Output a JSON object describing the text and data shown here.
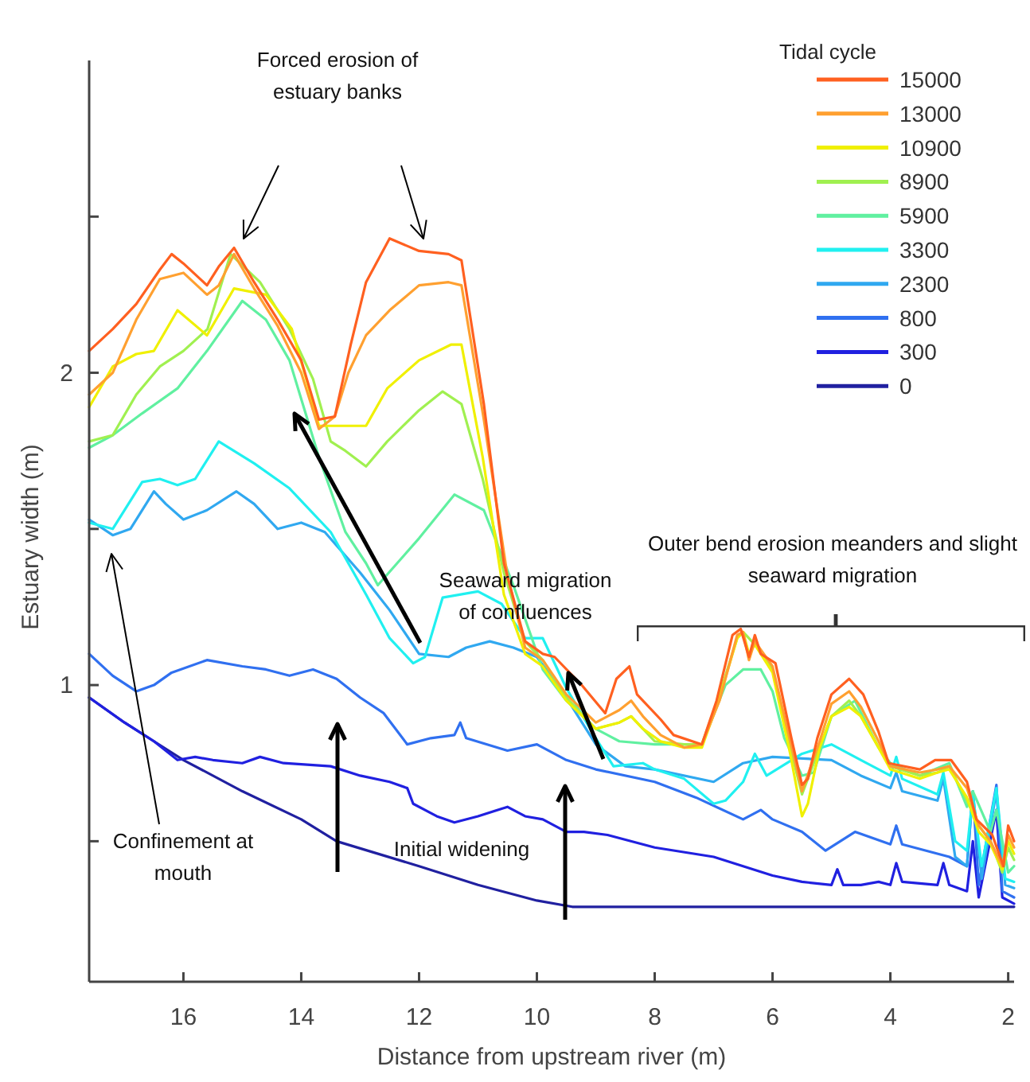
{
  "chart_data": {
    "type": "line",
    "xlabel": "Distance from upstream river (m)",
    "ylabel": "Estuary width (m)",
    "legend_title": "Tidal cycle",
    "legend": "top right",
    "grid": false,
    "marker": "none",
    "line_style": "solid",
    "xlim": [
      17.6,
      1.9
    ],
    "xticks": [
      16,
      14,
      12,
      10,
      8,
      6,
      4,
      2
    ],
    "ylim": [
      0.05,
      3.0
    ],
    "yticks": [
      {
        "value": 0.5,
        "label": null
      },
      1,
      {
        "value": 1.5,
        "label": null
      },
      2,
      {
        "value": 2.5,
        "label": null
      }
    ],
    "annotations": [
      "Forced erosion of estuary banks",
      "Seaward migration of confluences",
      "Outer bend erosion meanders and slight seaward migration",
      "Confinement at mouth",
      "Initial widening"
    ],
    "series": [
      {
        "name": "15000",
        "color": "#ff6020",
        "x": [
          17.6,
          17.2,
          16.8,
          16.4,
          16.2,
          16.0,
          15.6,
          15.4,
          15.14,
          14.8,
          14.4,
          14.0,
          13.7,
          13.43,
          13.16,
          12.9,
          12.5,
          12.0,
          11.5,
          11.28,
          10.9,
          10.56,
          10.2,
          9.9,
          9.7,
          9.24,
          8.84,
          8.65,
          8.43,
          8.3,
          7.9,
          7.68,
          7.2,
          6.95,
          6.68,
          6.54,
          6.4,
          6.3,
          6.2,
          5.95,
          5.68,
          5.5,
          5.4,
          5.24,
          5.0,
          4.7,
          4.46,
          4.2,
          4.03,
          3.5,
          3.24,
          2.97,
          2.7,
          2.54,
          2.27,
          2.08,
          2.0,
          1.9
        ],
        "values": [
          2.07,
          2.14,
          2.22,
          2.33,
          2.38,
          2.35,
          2.28,
          2.34,
          2.4,
          2.29,
          2.17,
          2.04,
          1.85,
          1.86,
          2.09,
          2.29,
          2.43,
          2.39,
          2.38,
          2.36,
          1.9,
          1.39,
          1.14,
          1.1,
          1.09,
          1.0,
          0.91,
          1.02,
          1.06,
          0.97,
          0.89,
          0.84,
          0.81,
          0.95,
          1.16,
          1.18,
          1.09,
          1.16,
          1.1,
          1.07,
          0.83,
          0.68,
          0.7,
          0.83,
          0.97,
          1.02,
          0.97,
          0.85,
          0.75,
          0.73,
          0.76,
          0.76,
          0.69,
          0.57,
          0.52,
          0.42,
          0.55,
          0.5
        ]
      },
      {
        "name": "13000",
        "color": "#ffa030",
        "x": [
          17.6,
          17.2,
          16.8,
          16.4,
          16.0,
          15.6,
          15.4,
          15.14,
          14.8,
          14.4,
          14.0,
          13.7,
          13.43,
          13.2,
          12.9,
          12.5,
          12.0,
          11.5,
          11.28,
          10.9,
          10.5,
          10.2,
          9.9,
          9.5,
          9.0,
          8.6,
          8.4,
          8.2,
          7.9,
          7.5,
          7.2,
          6.9,
          6.6,
          6.5,
          6.4,
          6.3,
          6.0,
          5.7,
          5.5,
          5.2,
          5.0,
          4.7,
          4.5,
          4.2,
          4.0,
          3.5,
          3.2,
          3.0,
          2.7,
          2.5,
          2.3,
          2.1,
          2.0,
          1.9
        ],
        "values": [
          1.93,
          2.0,
          2.17,
          2.3,
          2.32,
          2.25,
          2.28,
          2.38,
          2.27,
          2.15,
          2.0,
          1.82,
          1.86,
          2.0,
          2.12,
          2.2,
          2.28,
          2.29,
          2.28,
          1.85,
          1.35,
          1.12,
          1.08,
          0.97,
          0.88,
          0.92,
          0.95,
          0.9,
          0.84,
          0.8,
          0.81,
          0.95,
          1.16,
          1.17,
          1.08,
          1.14,
          1.06,
          0.82,
          0.66,
          0.82,
          0.94,
          0.98,
          0.93,
          0.82,
          0.74,
          0.72,
          0.73,
          0.74,
          0.67,
          0.55,
          0.5,
          0.42,
          0.52,
          0.48
        ]
      },
      {
        "name": "10900",
        "color": "#f0f000",
        "x": [
          17.6,
          17.2,
          16.8,
          16.5,
          16.1,
          15.6,
          15.14,
          14.6,
          14.16,
          13.9,
          13.7,
          13.43,
          12.9,
          12.54,
          12.0,
          11.46,
          11.28,
          10.92,
          10.56,
          10.2,
          9.9,
          9.5,
          9.0,
          8.6,
          8.4,
          8.2,
          7.9,
          7.5,
          7.2,
          6.9,
          6.6,
          6.5,
          6.4,
          6.3,
          6.0,
          5.7,
          5.5,
          5.4,
          5.2,
          5.0,
          4.7,
          4.5,
          4.2,
          4.0,
          3.5,
          3.2,
          3.0,
          2.7,
          2.5,
          2.3,
          2.1,
          2.0,
          1.9
        ],
        "values": [
          1.89,
          2.02,
          2.06,
          2.07,
          2.2,
          2.12,
          2.27,
          2.25,
          2.14,
          1.97,
          1.83,
          1.83,
          1.83,
          1.95,
          2.04,
          2.09,
          2.09,
          1.73,
          1.29,
          1.1,
          1.06,
          0.95,
          0.86,
          0.88,
          0.9,
          0.86,
          0.82,
          0.8,
          0.8,
          0.96,
          1.15,
          1.17,
          1.1,
          1.13,
          1.04,
          0.78,
          0.58,
          0.62,
          0.8,
          0.9,
          0.93,
          0.9,
          0.8,
          0.73,
          0.7,
          0.72,
          0.73,
          0.64,
          0.53,
          0.49,
          0.41,
          0.5,
          0.46
        ]
      },
      {
        "name": "8900",
        "color": "#a0f050",
        "x": [
          17.6,
          17.2,
          16.8,
          16.4,
          16.0,
          15.59,
          15.2,
          14.7,
          14.2,
          13.8,
          13.5,
          13.25,
          12.9,
          12.54,
          12.0,
          11.6,
          11.28,
          10.92,
          10.56,
          10.2,
          9.9,
          9.5,
          9.0,
          8.6,
          8.4,
          8.0,
          7.5,
          7.2,
          6.9,
          6.6,
          6.5,
          6.3,
          6.0,
          5.7,
          5.5,
          5.2,
          5.0,
          4.7,
          4.5,
          4.2,
          4.0,
          3.5,
          3.2,
          3.0,
          2.7,
          2.5,
          2.3,
          2.1,
          2.0,
          1.9
        ],
        "values": [
          1.78,
          1.8,
          1.93,
          2.02,
          2.07,
          2.14,
          2.38,
          2.29,
          2.14,
          1.98,
          1.78,
          1.75,
          1.7,
          1.78,
          1.88,
          1.94,
          1.9,
          1.66,
          1.36,
          1.14,
          1.08,
          0.96,
          0.86,
          0.88,
          0.9,
          0.82,
          0.81,
          0.81,
          0.97,
          1.15,
          1.17,
          1.13,
          1.05,
          0.8,
          0.65,
          0.8,
          0.9,
          0.95,
          0.9,
          0.8,
          0.74,
          0.71,
          0.72,
          0.74,
          0.63,
          0.55,
          0.5,
          0.4,
          0.48,
          0.44
        ]
      },
      {
        "name": "5900",
        "color": "#60f0a0",
        "x": [
          17.6,
          17.2,
          16.7,
          16.1,
          15.6,
          15.0,
          14.6,
          14.2,
          13.7,
          13.25,
          12.9,
          12.7,
          12.0,
          11.4,
          10.9,
          10.4,
          9.9,
          9.5,
          9.0,
          8.6,
          8.0,
          7.2,
          6.8,
          6.5,
          6.2,
          6.0,
          5.8,
          5.5,
          5.3,
          5.0,
          4.6,
          4.2,
          4.0,
          3.5,
          3.0,
          2.7,
          2.6,
          2.3,
          2.2,
          2.0,
          1.9
        ],
        "values": [
          1.76,
          1.8,
          1.87,
          1.95,
          2.07,
          2.23,
          2.17,
          2.04,
          1.73,
          1.49,
          1.39,
          1.32,
          1.47,
          1.61,
          1.56,
          1.32,
          1.05,
          0.95,
          0.86,
          0.82,
          0.81,
          0.81,
          1.0,
          1.05,
          1.05,
          0.98,
          0.83,
          0.71,
          0.72,
          0.9,
          0.95,
          0.8,
          0.75,
          0.71,
          0.75,
          0.61,
          0.66,
          0.53,
          0.6,
          0.4,
          0.42
        ]
      },
      {
        "name": "3300",
        "color": "#20f0f0",
        "x": [
          17.6,
          17.2,
          16.7,
          16.4,
          16.1,
          15.8,
          15.4,
          14.8,
          14.2,
          13.5,
          12.9,
          12.5,
          12.1,
          11.9,
          11.6,
          11.0,
          10.6,
          10.2,
          9.9,
          9.5,
          9.0,
          8.7,
          8.2,
          8.0,
          7.5,
          7.0,
          6.8,
          6.5,
          6.3,
          6.1,
          5.5,
          5.0,
          4.5,
          4.0,
          3.9,
          3.8,
          3.2,
          3.1,
          2.9,
          2.7,
          2.6,
          2.45,
          2.2,
          2.05,
          1.9
        ],
        "values": [
          1.52,
          1.5,
          1.65,
          1.66,
          1.64,
          1.66,
          1.78,
          1.71,
          1.63,
          1.49,
          1.29,
          1.15,
          1.07,
          1.09,
          1.28,
          1.3,
          1.26,
          1.15,
          1.15,
          0.99,
          0.83,
          0.74,
          0.75,
          0.73,
          0.7,
          0.62,
          0.63,
          0.69,
          0.78,
          0.71,
          0.78,
          0.81,
          0.76,
          0.71,
          0.77,
          0.7,
          0.65,
          0.72,
          0.5,
          0.47,
          0.65,
          0.42,
          0.67,
          0.38,
          0.37
        ]
      },
      {
        "name": "2300",
        "color": "#30a8f0",
        "x": [
          17.6,
          17.2,
          16.9,
          16.5,
          16.3,
          16.0,
          15.6,
          15.1,
          14.8,
          14.4,
          14.0,
          13.6,
          13.0,
          12.5,
          12.0,
          11.5,
          11.2,
          10.8,
          10.4,
          10.0,
          9.5,
          9.0,
          8.5,
          8.0,
          7.0,
          6.5,
          6.0,
          5.0,
          4.5,
          4.0,
          3.9,
          3.8,
          3.2,
          3.1,
          2.9,
          2.7,
          2.6,
          2.45,
          2.2,
          2.05,
          1.9
        ],
        "values": [
          1.53,
          1.48,
          1.5,
          1.62,
          1.58,
          1.53,
          1.56,
          1.62,
          1.58,
          1.5,
          1.52,
          1.49,
          1.36,
          1.24,
          1.1,
          1.09,
          1.12,
          1.14,
          1.12,
          1.09,
          0.96,
          0.81,
          0.74,
          0.73,
          0.69,
          0.75,
          0.77,
          0.76,
          0.71,
          0.67,
          0.72,
          0.66,
          0.63,
          0.7,
          0.45,
          0.42,
          0.66,
          0.38,
          0.66,
          0.36,
          0.35
        ]
      },
      {
        "name": "800",
        "color": "#3070f0",
        "x": [
          17.6,
          17.2,
          16.8,
          16.5,
          16.2,
          15.6,
          15.0,
          14.6,
          14.2,
          13.8,
          13.4,
          13.0,
          12.6,
          12.2,
          11.8,
          11.4,
          11.3,
          11.2,
          10.5,
          10.0,
          9.5,
          9.0,
          8.0,
          7.3,
          6.5,
          6.2,
          6.0,
          5.5,
          5.1,
          4.6,
          4.0,
          3.9,
          3.8,
          3.0,
          2.7,
          2.6,
          2.5,
          2.2,
          2.1,
          1.9
        ],
        "values": [
          1.1,
          1.03,
          0.98,
          1.0,
          1.04,
          1.08,
          1.06,
          1.05,
          1.03,
          1.05,
          1.02,
          0.96,
          0.91,
          0.81,
          0.83,
          0.84,
          0.88,
          0.83,
          0.79,
          0.81,
          0.76,
          0.73,
          0.69,
          0.64,
          0.57,
          0.6,
          0.57,
          0.53,
          0.47,
          0.53,
          0.49,
          0.55,
          0.49,
          0.45,
          0.42,
          0.66,
          0.36,
          0.68,
          0.34,
          0.32
        ]
      },
      {
        "name": "300",
        "color": "#2020e0",
        "x": [
          17.6,
          17.0,
          16.5,
          16.1,
          15.8,
          15.5,
          15.0,
          14.7,
          14.3,
          13.5,
          13.0,
          12.5,
          12.2,
          12.1,
          11.7,
          11.4,
          11.0,
          10.5,
          10.2,
          9.9,
          9.5,
          9.2,
          8.8,
          8.0,
          7.0,
          6.5,
          6.0,
          5.5,
          5.0,
          4.9,
          4.8,
          4.5,
          4.2,
          4.0,
          3.9,
          3.8,
          3.2,
          3.1,
          3.0,
          2.7,
          2.6,
          2.5,
          2.2,
          2.1,
          1.9
        ],
        "values": [
          0.96,
          0.88,
          0.82,
          0.76,
          0.77,
          0.76,
          0.75,
          0.77,
          0.75,
          0.74,
          0.71,
          0.69,
          0.67,
          0.62,
          0.58,
          0.56,
          0.58,
          0.61,
          0.58,
          0.57,
          0.53,
          0.53,
          0.52,
          0.48,
          0.45,
          0.42,
          0.39,
          0.37,
          0.36,
          0.41,
          0.36,
          0.36,
          0.37,
          0.36,
          0.43,
          0.37,
          0.36,
          0.43,
          0.36,
          0.34,
          0.5,
          0.32,
          0.6,
          0.32,
          0.3
        ]
      },
      {
        "name": "0",
        "color": "#2020a0",
        "x": [
          17.6,
          17.0,
          16.5,
          16.0,
          15.0,
          14.0,
          13.4,
          12.0,
          11.0,
          10.0,
          9.4,
          2.0,
          1.9
        ],
        "values": [
          0.96,
          0.88,
          0.82,
          0.76,
          0.66,
          0.57,
          0.5,
          0.42,
          0.36,
          0.31,
          0.29,
          0.29,
          0.29
        ]
      }
    ]
  }
}
